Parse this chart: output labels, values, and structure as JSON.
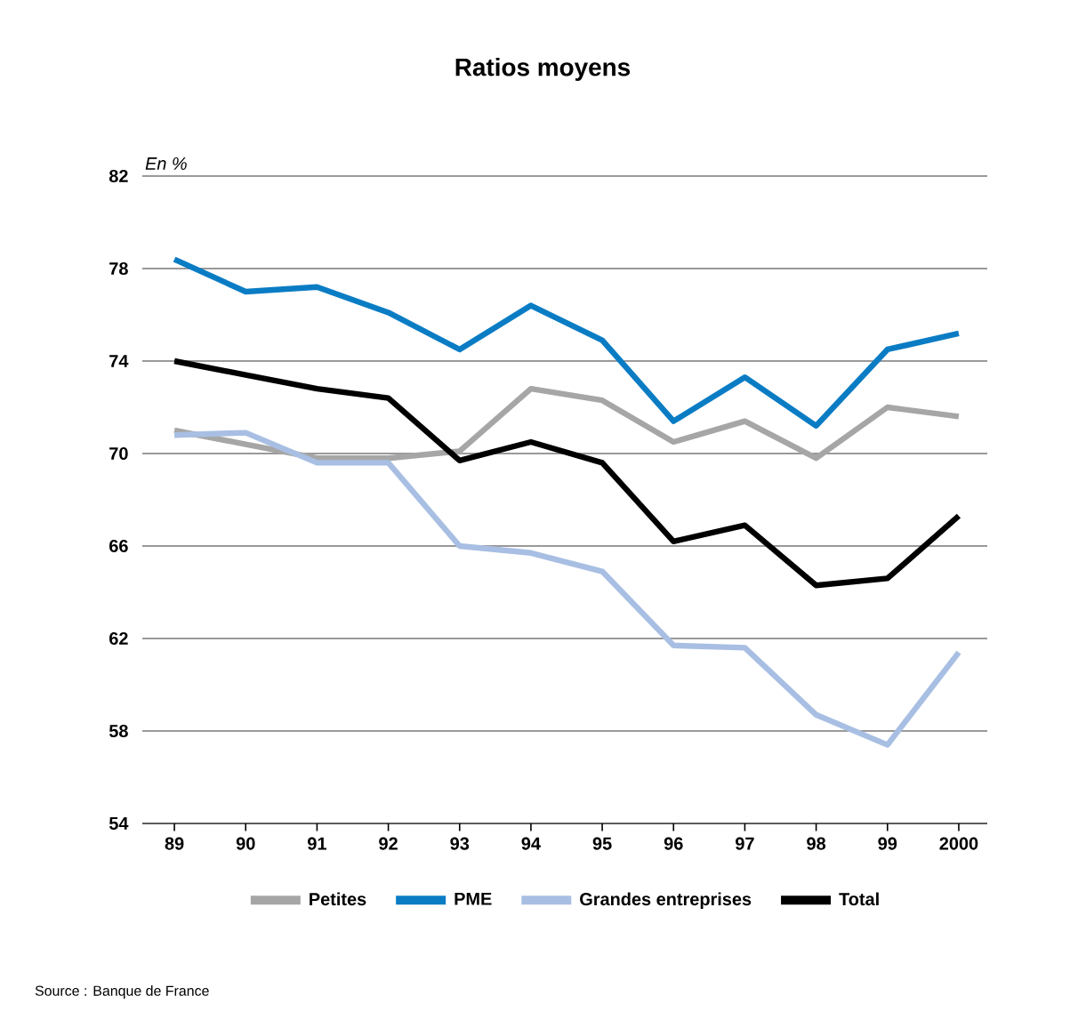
{
  "chart_data": {
    "type": "line",
    "title": "Ratios moyens",
    "ylabel": "En %",
    "categories": [
      "89",
      "90",
      "91",
      "92",
      "93",
      "94",
      "95",
      "96",
      "97",
      "98",
      "99",
      "2000"
    ],
    "series": [
      {
        "name": "Petites",
        "color": "#a6a6a6",
        "values": [
          71.0,
          70.4,
          69.8,
          69.8,
          70.1,
          72.8,
          72.3,
          70.5,
          71.4,
          69.8,
          72.0,
          71.6
        ]
      },
      {
        "name": "PME",
        "color": "#0a7cc4",
        "values": [
          78.4,
          77.0,
          77.2,
          76.1,
          74.5,
          76.4,
          74.9,
          71.4,
          73.3,
          71.2,
          74.5,
          75.2
        ]
      },
      {
        "name": "Grandes entreprises",
        "color": "#a8bfe3",
        "values": [
          70.8,
          70.9,
          69.6,
          69.6,
          66.0,
          65.7,
          64.9,
          61.7,
          61.6,
          58.7,
          57.4,
          61.4
        ]
      },
      {
        "name": "Total",
        "color": "#000000",
        "values": [
          74.0,
          73.4,
          72.8,
          72.4,
          69.7,
          70.5,
          69.6,
          66.2,
          66.9,
          64.3,
          64.6,
          67.3
        ]
      }
    ],
    "ylim": [
      54,
      82
    ],
    "yticks": [
      54,
      58,
      62,
      66,
      70,
      74,
      78,
      82
    ],
    "grid": "y",
    "legend": "bottom",
    "marker": "none",
    "line_style": "solid",
    "annotations": [
      "Source : Banque de France"
    ]
  }
}
